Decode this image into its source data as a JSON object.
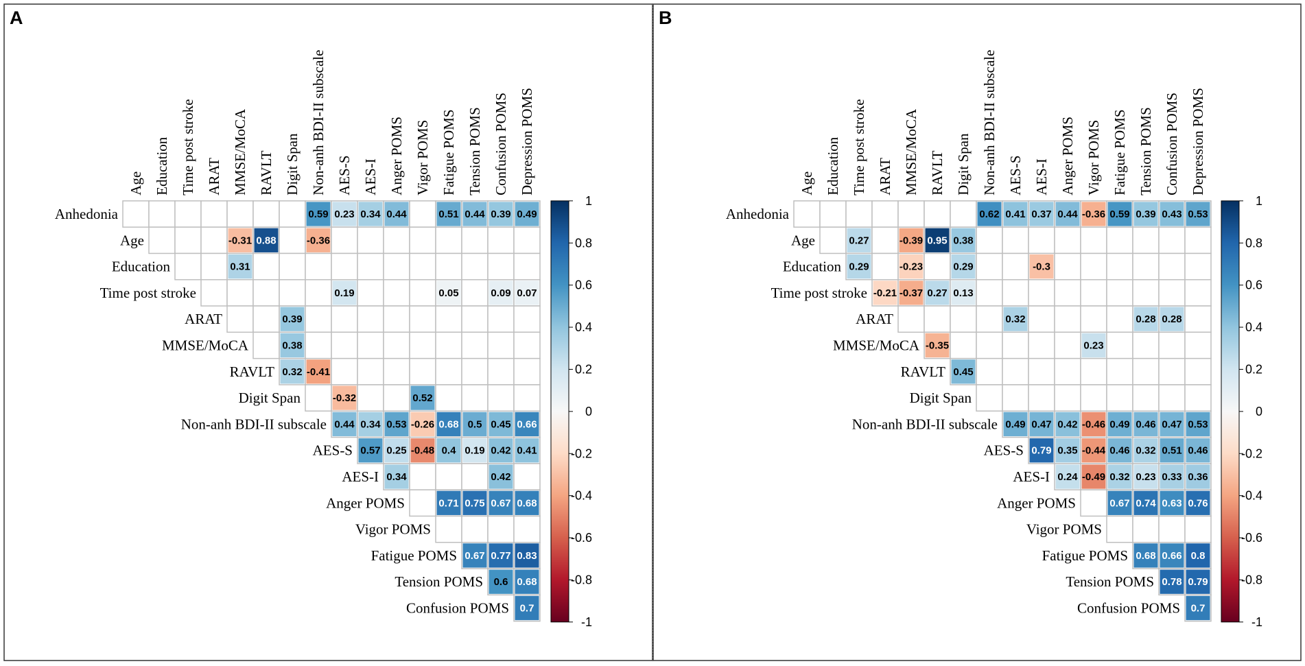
{
  "chart_data": [
    {
      "type": "heatmap",
      "panel_label": "A",
      "rows": [
        "Anhedonia",
        "Age",
        "Education",
        "Time post stroke",
        "ARAT",
        "MMSE/MoCA",
        "RAVLT",
        "Digit Span",
        "Non-anh BDI-II subscale",
        "AES-S",
        "AES-I",
        "Anger POMS",
        "Vigor POMS",
        "Fatigue POMS",
        "Tension POMS",
        "Confusion POMS"
      ],
      "columns": [
        "Age",
        "Education",
        "Time post stroke",
        "ARAT",
        "MMSE/MoCA",
        "RAVLT",
        "Digit Span",
        "Non-anh BDI-II subscale",
        "AES-S",
        "AES-I",
        "Anger POMS",
        "Vigor POMS",
        "Fatigue POMS",
        "Tension POMS",
        "Confusion POMS",
        "Depression POMS"
      ],
      "cells": [
        {
          "row": 0,
          "col": 7,
          "value": 0.59,
          "label": "0.59"
        },
        {
          "row": 0,
          "col": 8,
          "value": 0.23,
          "label": "0.23"
        },
        {
          "row": 0,
          "col": 9,
          "value": 0.34,
          "label": "0.34"
        },
        {
          "row": 0,
          "col": 10,
          "value": 0.44,
          "label": "0.44"
        },
        {
          "row": 0,
          "col": 12,
          "value": 0.51,
          "label": "0.51"
        },
        {
          "row": 0,
          "col": 13,
          "value": 0.44,
          "label": "0.44"
        },
        {
          "row": 0,
          "col": 14,
          "value": 0.39,
          "label": "0.39"
        },
        {
          "row": 0,
          "col": 15,
          "value": 0.49,
          "label": "0.49"
        },
        {
          "row": 1,
          "col": 4,
          "value": -0.31,
          "label": "-0.31"
        },
        {
          "row": 1,
          "col": 5,
          "value": 0.88,
          "label": "0.88"
        },
        {
          "row": 1,
          "col": 7,
          "value": -0.36,
          "label": "-0.36"
        },
        {
          "row": 2,
          "col": 4,
          "value": 0.31,
          "label": "0.31"
        },
        {
          "row": 3,
          "col": 8,
          "value": 0.19,
          "label": "0.19"
        },
        {
          "row": 3,
          "col": 12,
          "value": 0.05,
          "label": "0.05"
        },
        {
          "row": 3,
          "col": 14,
          "value": 0.09,
          "label": "0.09"
        },
        {
          "row": 3,
          "col": 15,
          "value": 0.07,
          "label": "0.07"
        },
        {
          "row": 4,
          "col": 6,
          "value": 0.39,
          "label": "0.39"
        },
        {
          "row": 5,
          "col": 6,
          "value": 0.38,
          "label": "0.38"
        },
        {
          "row": 6,
          "col": 6,
          "value": 0.32,
          "label": "0.32"
        },
        {
          "row": 6,
          "col": 7,
          "value": -0.41,
          "label": "-0.41"
        },
        {
          "row": 7,
          "col": 8,
          "value": -0.32,
          "label": "-0.32"
        },
        {
          "row": 7,
          "col": 11,
          "value": 0.52,
          "label": "0.52"
        },
        {
          "row": 8,
          "col": 8,
          "value": 0.44,
          "label": "0.44"
        },
        {
          "row": 8,
          "col": 9,
          "value": 0.34,
          "label": "0.34"
        },
        {
          "row": 8,
          "col": 10,
          "value": 0.53,
          "label": "0.53"
        },
        {
          "row": 8,
          "col": 11,
          "value": -0.26,
          "label": "-0.26"
        },
        {
          "row": 8,
          "col": 12,
          "value": 0.68,
          "label": "0.68"
        },
        {
          "row": 8,
          "col": 13,
          "value": 0.5,
          "label": "0.5"
        },
        {
          "row": 8,
          "col": 14,
          "value": 0.45,
          "label": "0.45"
        },
        {
          "row": 8,
          "col": 15,
          "value": 0.66,
          "label": "0.66"
        },
        {
          "row": 9,
          "col": 9,
          "value": 0.57,
          "label": "0.57"
        },
        {
          "row": 9,
          "col": 10,
          "value": 0.25,
          "label": "0.25"
        },
        {
          "row": 9,
          "col": 11,
          "value": -0.48,
          "label": "-0.48"
        },
        {
          "row": 9,
          "col": 12,
          "value": 0.4,
          "label": "0.4"
        },
        {
          "row": 9,
          "col": 13,
          "value": 0.19,
          "label": "0.19"
        },
        {
          "row": 9,
          "col": 14,
          "value": 0.42,
          "label": "0.42"
        },
        {
          "row": 9,
          "col": 15,
          "value": 0.41,
          "label": "0.41"
        },
        {
          "row": 10,
          "col": 10,
          "value": 0.34,
          "label": "0.34"
        },
        {
          "row": 10,
          "col": 14,
          "value": 0.42,
          "label": "0.42"
        },
        {
          "row": 11,
          "col": 12,
          "value": 0.71,
          "label": "0.71"
        },
        {
          "row": 11,
          "col": 13,
          "value": 0.75,
          "label": "0.75"
        },
        {
          "row": 11,
          "col": 14,
          "value": 0.67,
          "label": "0.67"
        },
        {
          "row": 11,
          "col": 15,
          "value": 0.68,
          "label": "0.68"
        },
        {
          "row": 13,
          "col": 13,
          "value": 0.67,
          "label": "0.67"
        },
        {
          "row": 13,
          "col": 14,
          "value": 0.77,
          "label": "0.77"
        },
        {
          "row": 13,
          "col": 15,
          "value": 0.83,
          "label": "0.83"
        },
        {
          "row": 14,
          "col": 14,
          "value": 0.6,
          "label": "0.6"
        },
        {
          "row": 14,
          "col": 15,
          "value": 0.68,
          "label": "0.68"
        },
        {
          "row": 15,
          "col": 15,
          "value": 0.7,
          "label": "0.7"
        }
      ],
      "colorbar": {
        "min": -1,
        "max": 1,
        "ticks": [
          "1",
          "0.8",
          "0.6",
          "0.4",
          "0.2",
          "0",
          "-0.2",
          "-0.4",
          "-0.6",
          "-0.8",
          "-1"
        ]
      }
    },
    {
      "type": "heatmap",
      "panel_label": "B",
      "rows": [
        "Anhedonia",
        "Age",
        "Education",
        "Time post stroke",
        "ARAT",
        "MMSE/MoCA",
        "RAVLT",
        "Digit Span",
        "Non-anh BDI-II subscale",
        "AES-S",
        "AES-I",
        "Anger POMS",
        "Vigor POMS",
        "Fatigue POMS",
        "Tension POMS",
        "Confusion POMS"
      ],
      "columns": [
        "Age",
        "Education",
        "Time post stroke",
        "ARAT",
        "MMSE/MoCA",
        "RAVLT",
        "Digit Span",
        "Non-anh BDI-II subscale",
        "AES-S",
        "AES-I",
        "Anger POMS",
        "Vigor POMS",
        "Fatigue POMS",
        "Tension POMS",
        "Confusion POMS",
        "Depression POMS"
      ],
      "cells": [
        {
          "row": 0,
          "col": 7,
          "value": 0.62,
          "label": "0.62"
        },
        {
          "row": 0,
          "col": 8,
          "value": 0.41,
          "label": "0.41"
        },
        {
          "row": 0,
          "col": 9,
          "value": 0.37,
          "label": "0.37"
        },
        {
          "row": 0,
          "col": 10,
          "value": 0.44,
          "label": "0.44"
        },
        {
          "row": 0,
          "col": 11,
          "value": -0.36,
          "label": "-0.36"
        },
        {
          "row": 0,
          "col": 12,
          "value": 0.59,
          "label": "0.59"
        },
        {
          "row": 0,
          "col": 13,
          "value": 0.39,
          "label": "0.39"
        },
        {
          "row": 0,
          "col": 14,
          "value": 0.43,
          "label": "0.43"
        },
        {
          "row": 0,
          "col": 15,
          "value": 0.53,
          "label": "0.53"
        },
        {
          "row": 1,
          "col": 2,
          "value": 0.27,
          "label": "0.27"
        },
        {
          "row": 1,
          "col": 4,
          "value": -0.39,
          "label": "-0.39"
        },
        {
          "row": 1,
          "col": 5,
          "value": 0.95,
          "label": "0.95"
        },
        {
          "row": 1,
          "col": 6,
          "value": 0.38,
          "label": "0.38"
        },
        {
          "row": 2,
          "col": 2,
          "value": 0.29,
          "label": "0.29"
        },
        {
          "row": 2,
          "col": 4,
          "value": -0.23,
          "label": "-0.23"
        },
        {
          "row": 2,
          "col": 6,
          "value": 0.29,
          "label": "0.29"
        },
        {
          "row": 2,
          "col": 9,
          "value": -0.3,
          "label": "-0.3"
        },
        {
          "row": 3,
          "col": 3,
          "value": -0.21,
          "label": "-0.21"
        },
        {
          "row": 3,
          "col": 4,
          "value": -0.37,
          "label": "-0.37"
        },
        {
          "row": 3,
          "col": 5,
          "value": 0.27,
          "label": "0.27"
        },
        {
          "row": 3,
          "col": 6,
          "value": 0.13,
          "label": "0.13"
        },
        {
          "row": 4,
          "col": 8,
          "value": 0.32,
          "label": "0.32"
        },
        {
          "row": 4,
          "col": 13,
          "value": 0.28,
          "label": "0.28"
        },
        {
          "row": 4,
          "col": 14,
          "value": 0.28,
          "label": "0.28"
        },
        {
          "row": 5,
          "col": 5,
          "value": -0.35,
          "label": "-0.35"
        },
        {
          "row": 5,
          "col": 11,
          "value": 0.23,
          "label": "0.23"
        },
        {
          "row": 6,
          "col": 6,
          "value": 0.45,
          "label": "0.45"
        },
        {
          "row": 8,
          "col": 8,
          "value": 0.49,
          "label": "0.49"
        },
        {
          "row": 8,
          "col": 9,
          "value": 0.47,
          "label": "0.47"
        },
        {
          "row": 8,
          "col": 10,
          "value": 0.42,
          "label": "0.42"
        },
        {
          "row": 8,
          "col": 11,
          "value": -0.46,
          "label": "-0.46"
        },
        {
          "row": 8,
          "col": 12,
          "value": 0.49,
          "label": "0.49"
        },
        {
          "row": 8,
          "col": 13,
          "value": 0.46,
          "label": "0.46"
        },
        {
          "row": 8,
          "col": 14,
          "value": 0.47,
          "label": "0.47"
        },
        {
          "row": 8,
          "col": 15,
          "value": 0.53,
          "label": "0.53"
        },
        {
          "row": 9,
          "col": 9,
          "value": 0.79,
          "label": "0.79"
        },
        {
          "row": 9,
          "col": 10,
          "value": 0.35,
          "label": "0.35"
        },
        {
          "row": 9,
          "col": 11,
          "value": -0.44,
          "label": "-0.44"
        },
        {
          "row": 9,
          "col": 12,
          "value": 0.46,
          "label": "0.46"
        },
        {
          "row": 9,
          "col": 13,
          "value": 0.32,
          "label": "0.32"
        },
        {
          "row": 9,
          "col": 14,
          "value": 0.51,
          "label": "0.51"
        },
        {
          "row": 9,
          "col": 15,
          "value": 0.46,
          "label": "0.46"
        },
        {
          "row": 10,
          "col": 10,
          "value": 0.24,
          "label": "0.24"
        },
        {
          "row": 10,
          "col": 11,
          "value": -0.49,
          "label": "-0.49"
        },
        {
          "row": 10,
          "col": 12,
          "value": 0.32,
          "label": "0.32"
        },
        {
          "row": 10,
          "col": 13,
          "value": 0.23,
          "label": "0.23"
        },
        {
          "row": 10,
          "col": 14,
          "value": 0.33,
          "label": "0.33"
        },
        {
          "row": 10,
          "col": 15,
          "value": 0.36,
          "label": "0.36"
        },
        {
          "row": 11,
          "col": 12,
          "value": 0.67,
          "label": "0.67"
        },
        {
          "row": 11,
          "col": 13,
          "value": 0.74,
          "label": "0.74"
        },
        {
          "row": 11,
          "col": 14,
          "value": 0.63,
          "label": "0.63"
        },
        {
          "row": 11,
          "col": 15,
          "value": 0.76,
          "label": "0.76"
        },
        {
          "row": 13,
          "col": 13,
          "value": 0.68,
          "label": "0.68"
        },
        {
          "row": 13,
          "col": 14,
          "value": 0.66,
          "label": "0.66"
        },
        {
          "row": 13,
          "col": 15,
          "value": 0.8,
          "label": "0.8"
        },
        {
          "row": 14,
          "col": 14,
          "value": 0.78,
          "label": "0.78"
        },
        {
          "row": 14,
          "col": 15,
          "value": 0.79,
          "label": "0.79"
        },
        {
          "row": 15,
          "col": 15,
          "value": 0.7,
          "label": "0.7"
        }
      ],
      "colorbar": {
        "min": -1,
        "max": 1,
        "ticks": [
          "1",
          "0.8",
          "0.6",
          "0.4",
          "0.2",
          "0",
          "-0.2",
          "-0.4",
          "-0.6",
          "-0.8",
          "-1"
        ]
      }
    }
  ],
  "colors": {
    "negative_max": "#67001f",
    "neutral": "#f7f7f7",
    "positive_max": "#053061",
    "grid": "#bfbfbf",
    "frame": "#333333"
  }
}
